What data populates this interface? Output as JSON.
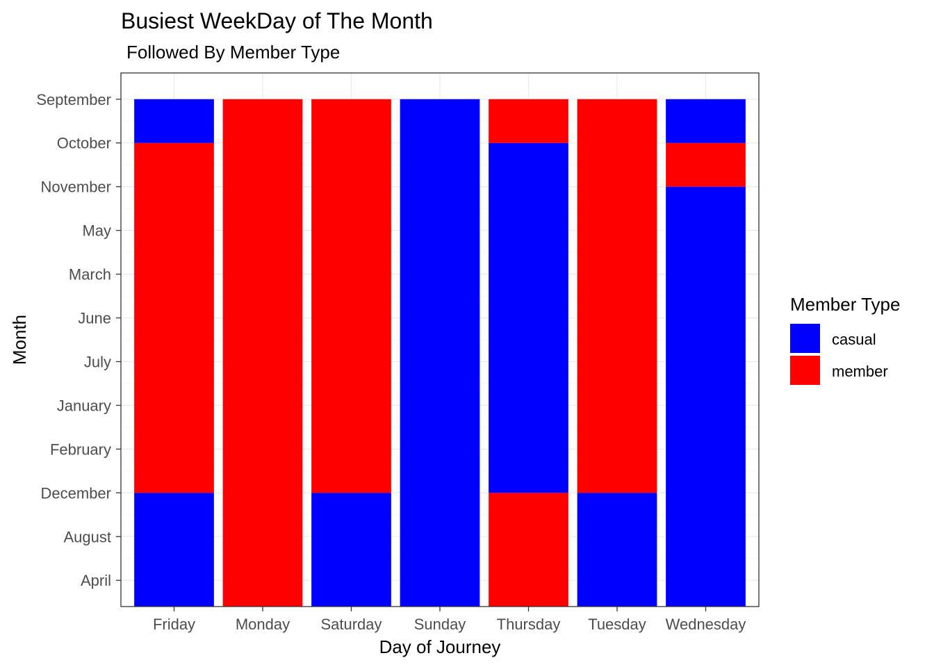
{
  "chart_data": {
    "type": "bar",
    "title": "Busiest WeekDay of The Month",
    "subtitle": "Followed By Member Type",
    "xlabel": "Day of Journey",
    "ylabel": "Month",
    "categories": [
      "Friday",
      "Monday",
      "Saturday",
      "Sunday",
      "Thursday",
      "Tuesday",
      "Wednesday"
    ],
    "y_levels": [
      "April",
      "August",
      "December",
      "February",
      "January",
      "July",
      "June",
      "March",
      "May",
      "November",
      "October",
      "September"
    ],
    "stacked": true,
    "series": [
      {
        "name": "casual",
        "color": "#0000ff"
      },
      {
        "name": "member",
        "color": "#ff0000"
      }
    ],
    "segments": [
      [
        {
          "series": "casual",
          "from": "",
          "to": "December"
        },
        {
          "series": "member",
          "from": "December",
          "to": "October"
        },
        {
          "series": "casual",
          "from": "October",
          "to": "September"
        }
      ],
      [
        {
          "series": "member",
          "from": "",
          "to": "September"
        }
      ],
      [
        {
          "series": "casual",
          "from": "",
          "to": "December"
        },
        {
          "series": "member",
          "from": "December",
          "to": "September"
        }
      ],
      [
        {
          "series": "casual",
          "from": "",
          "to": "September"
        }
      ],
      [
        {
          "series": "member",
          "from": "",
          "to": "December"
        },
        {
          "series": "casual",
          "from": "December",
          "to": "October"
        },
        {
          "series": "member",
          "from": "October",
          "to": "September"
        }
      ],
      [
        {
          "series": "casual",
          "from": "",
          "to": "December"
        },
        {
          "series": "member",
          "from": "December",
          "to": "September"
        }
      ],
      [
        {
          "series": "casual",
          "from": "",
          "to": "November"
        },
        {
          "series": "member",
          "from": "November",
          "to": "October"
        },
        {
          "series": "casual",
          "from": "October",
          "to": "September"
        }
      ]
    ],
    "legend": {
      "title": "Member Type",
      "position": "right",
      "entries": [
        "casual",
        "member"
      ]
    },
    "grid": true
  }
}
